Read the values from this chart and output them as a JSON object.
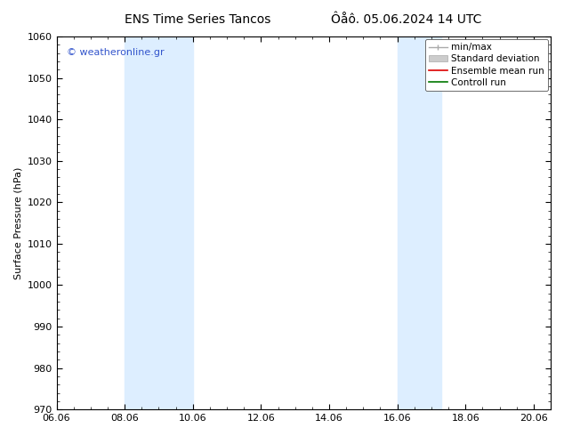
{
  "title_left": "ENS Time Series Tancos",
  "title_right": "Ôåô. 05.06.2024 14 UTC",
  "ylabel": "Surface Pressure (hPa)",
  "ylim": [
    970,
    1060
  ],
  "yticks": [
    970,
    980,
    990,
    1000,
    1010,
    1020,
    1030,
    1040,
    1050,
    1060
  ],
  "xlim": [
    0,
    14.5
  ],
  "xtick_labels": [
    "06.06",
    "08.06",
    "10.06",
    "12.06",
    "14.06",
    "16.06",
    "18.06",
    "20.06"
  ],
  "xtick_positions": [
    0,
    2,
    4,
    6,
    8,
    10,
    12,
    14
  ],
  "shaded_bands": [
    {
      "x_start": 2,
      "x_end": 4
    },
    {
      "x_start": 10,
      "x_end": 11.3
    }
  ],
  "shaded_color": "#ddeeff",
  "watermark_text": "© weatheronline.gr",
  "watermark_color": "#3355cc",
  "legend_items": [
    {
      "label": "min/max",
      "color": "#aaaaaa",
      "type": "minmax"
    },
    {
      "label": "Standard deviation",
      "color": "#cccccc",
      "type": "band"
    },
    {
      "label": "Ensemble mean run",
      "color": "#dd0000",
      "type": "line"
    },
    {
      "label": "Controll run",
      "color": "#007700",
      "type": "line"
    }
  ],
  "bg_color": "#ffffff",
  "title_fontsize": 10,
  "ylabel_fontsize": 8,
  "tick_fontsize": 8,
  "legend_fontsize": 7.5,
  "watermark_fontsize": 8
}
